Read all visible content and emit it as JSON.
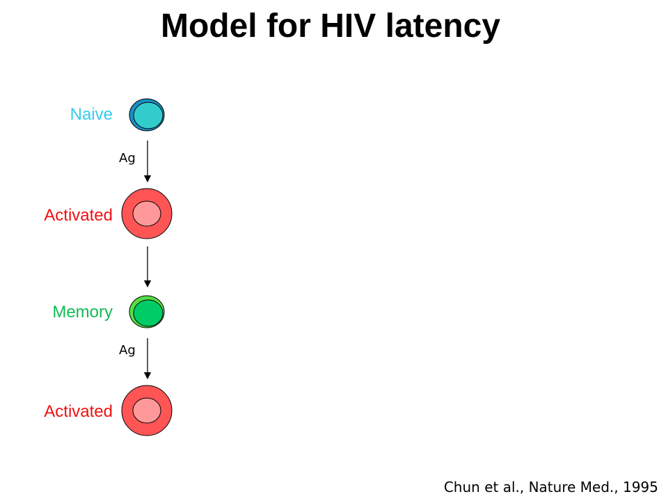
{
  "title": "Model for HIV latency",
  "stages": [
    {
      "label": "Naive",
      "color": "#33ccf0"
    },
    {
      "label": "Activated",
      "color": "#ee1111"
    },
    {
      "label": "Memory",
      "color": "#11bb55"
    },
    {
      "label": "Activated",
      "color": "#ee1111"
    }
  ],
  "arrow_labels": {
    "first": "Ag",
    "third": "Ag"
  },
  "cells": {
    "naive": {
      "outer": "#1a8fc4",
      "inner": "#33cccc"
    },
    "activated": {
      "outer": "#ff5555",
      "inner": "#ff9999"
    },
    "memory": {
      "outer": "#55dd44",
      "inner": "#00cc66"
    }
  },
  "citation": "Chun et al., Nature Med., 1995"
}
